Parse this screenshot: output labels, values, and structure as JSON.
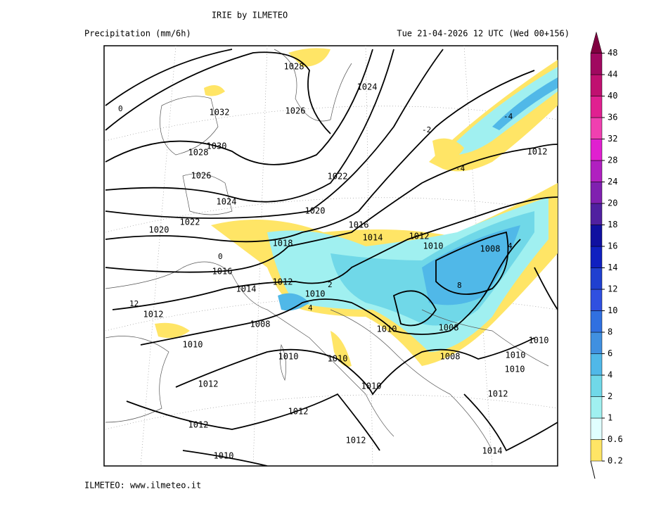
{
  "header": {
    "title": "IRIE by ILMETEO",
    "variable": "Precipitation (mm/6h)",
    "valid_time": "Tue 21-04-2026 12 UTC (Wed 00+156)"
  },
  "map": {
    "labels": [
      "1028",
      "1032",
      "1026",
      "1024",
      "1030",
      "1028",
      "1026",
      "1022",
      "1024",
      "1022",
      "1020",
      "1020",
      "1016",
      "1018",
      "1014",
      "1012",
      "1010",
      "1008",
      "1016",
      "1014",
      "1012",
      "1010",
      "1012",
      "1008",
      "1010",
      "1008",
      "1010",
      "1010",
      "1010",
      "1008",
      "1010",
      "1010",
      "1010",
      "1012",
      "1010",
      "1012",
      "1012",
      "1012",
      "1012",
      "1014",
      "1010",
      "1012"
    ],
    "temps": [
      "-2",
      "-4",
      "-4",
      "0",
      "0",
      "4",
      "4",
      "2",
      "8",
      "12"
    ]
  },
  "legend": {
    "levels": [
      0.2,
      0.6,
      1,
      2,
      4,
      6,
      8,
      10,
      12,
      14,
      16,
      18,
      20,
      24,
      28,
      32,
      36,
      40,
      44,
      48
    ],
    "colors": [
      "#ffe566",
      "#e0ffff",
      "#a0f0f0",
      "#70d8e8",
      "#50b8e8",
      "#4090e0",
      "#3070e0",
      "#3050e0",
      "#2040d0",
      "#1020c0",
      "#1010a0",
      "#5020a0",
      "#8020b0",
      "#b020c0",
      "#e020d0",
      "#f040b0",
      "#e02090",
      "#c01070",
      "#a00860",
      "#800040"
    ]
  },
  "footer": {
    "text": "ILMETEO: www.ilmeteo.it"
  }
}
